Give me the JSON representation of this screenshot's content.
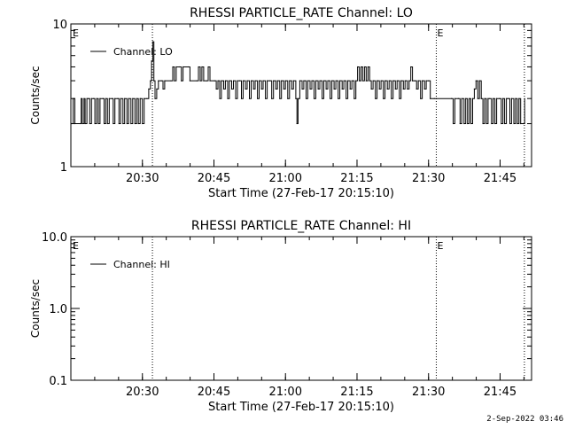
{
  "footer": {
    "timestamp": "2-Sep-2022 03:46"
  },
  "chart_data": [
    {
      "type": "line",
      "title": "RHESSI PARTICLE_RATE Channel: LO",
      "xlabel": "Start Time (27-Feb-17 20:15:10)",
      "ylabel": "Counts/sec",
      "scale": "log",
      "ylim": [
        1,
        10
      ],
      "ytick_labels": [
        "1",
        "10"
      ],
      "xlim_minutes": [
        20.25,
        21.86
      ],
      "xtick_labels": [
        "20:30",
        "20:45",
        "21:00",
        "21:15",
        "21:30",
        "21:45"
      ],
      "xtick_minutes": [
        20.5,
        20.75,
        21.0,
        21.25,
        21.5,
        21.75
      ],
      "legend": {
        "label": "Channel: LO",
        "placement": "top-left"
      },
      "event_markers": [
        {
          "label": "E",
          "minute": 20.253
        },
        {
          "label": "E",
          "minute": 21.527
        }
      ],
      "vlines_minutes": [
        20.535,
        21.527,
        21.835
      ],
      "series": [
        {
          "name": "Channel: LO",
          "values": [
            [
              20.252,
              2.0
            ],
            [
              20.258,
              3.0
            ],
            [
              20.264,
              2.0
            ],
            [
              20.282,
              2.0
            ],
            [
              20.286,
              3.0
            ],
            [
              20.29,
              2.0
            ],
            [
              20.296,
              3.0
            ],
            [
              20.3,
              2.0
            ],
            [
              20.306,
              3.0
            ],
            [
              20.312,
              3.0
            ],
            [
              20.316,
              2.0
            ],
            [
              20.322,
              3.0
            ],
            [
              20.33,
              3.0
            ],
            [
              20.334,
              2.0
            ],
            [
              20.34,
              3.0
            ],
            [
              20.346,
              2.0
            ],
            [
              20.352,
              3.0
            ],
            [
              20.362,
              3.0
            ],
            [
              20.366,
              2.0
            ],
            [
              20.372,
              3.0
            ],
            [
              20.378,
              2.0
            ],
            [
              20.384,
              3.0
            ],
            [
              20.394,
              3.0
            ],
            [
              20.398,
              2.0
            ],
            [
              20.404,
              3.0
            ],
            [
              20.414,
              3.0
            ],
            [
              20.418,
              2.0
            ],
            [
              20.424,
              3.0
            ],
            [
              20.432,
              2.0
            ],
            [
              20.438,
              3.0
            ],
            [
              20.446,
              2.0
            ],
            [
              20.452,
              3.0
            ],
            [
              20.46,
              2.0
            ],
            [
              20.466,
              3.0
            ],
            [
              20.474,
              2.0
            ],
            [
              20.48,
              3.0
            ],
            [
              20.486,
              2.0
            ],
            [
              20.492,
              3.0
            ],
            [
              20.5,
              2.0
            ],
            [
              20.506,
              3.0
            ],
            [
              20.516,
              3.0
            ],
            [
              20.522,
              3.5
            ],
            [
              20.528,
              4.0
            ],
            [
              20.532,
              5.5
            ],
            [
              20.536,
              7.5
            ],
            [
              20.54,
              4.0
            ],
            [
              20.544,
              3.0
            ],
            [
              20.55,
              3.5
            ],
            [
              20.556,
              4.0
            ],
            [
              20.566,
              4.0
            ],
            [
              20.572,
              3.5
            ],
            [
              20.578,
              4.0
            ],
            [
              20.6,
              4.0
            ],
            [
              20.606,
              5.0
            ],
            [
              20.612,
              4.0
            ],
            [
              20.618,
              5.0
            ],
            [
              20.63,
              5.0
            ],
            [
              20.636,
              4.0
            ],
            [
              20.642,
              5.0
            ],
            [
              20.66,
              5.0
            ],
            [
              20.666,
              4.0
            ],
            [
              20.69,
              4.0
            ],
            [
              20.696,
              5.0
            ],
            [
              20.702,
              4.0
            ],
            [
              20.708,
              5.0
            ],
            [
              20.714,
              4.0
            ],
            [
              20.724,
              4.0
            ],
            [
              20.73,
              5.0
            ],
            [
              20.736,
              4.0
            ],
            [
              20.752,
              4.0
            ],
            [
              20.758,
              3.5
            ],
            [
              20.764,
              4.0
            ],
            [
              20.77,
              3.0
            ],
            [
              20.776,
              4.0
            ],
            [
              20.784,
              3.5
            ],
            [
              20.79,
              4.0
            ],
            [
              20.798,
              3.0
            ],
            [
              20.804,
              4.0
            ],
            [
              20.812,
              3.5
            ],
            [
              20.818,
              4.0
            ],
            [
              20.826,
              3.0
            ],
            [
              20.832,
              4.0
            ],
            [
              20.84,
              4.0
            ],
            [
              20.846,
              3.0
            ],
            [
              20.852,
              4.0
            ],
            [
              20.86,
              3.5
            ],
            [
              20.866,
              4.0
            ],
            [
              20.874,
              3.0
            ],
            [
              20.88,
              4.0
            ],
            [
              20.888,
              3.5
            ],
            [
              20.894,
              4.0
            ],
            [
              20.902,
              3.0
            ],
            [
              20.908,
              4.0
            ],
            [
              20.916,
              3.5
            ],
            [
              20.922,
              4.0
            ],
            [
              20.93,
              3.0
            ],
            [
              20.936,
              4.0
            ],
            [
              20.946,
              4.0
            ],
            [
              20.952,
              3.0
            ],
            [
              20.958,
              4.0
            ],
            [
              20.966,
              3.5
            ],
            [
              20.972,
              4.0
            ],
            [
              20.98,
              3.0
            ],
            [
              20.986,
              4.0
            ],
            [
              20.994,
              3.5
            ],
            [
              21.0,
              4.0
            ],
            [
              21.008,
              3.0
            ],
            [
              21.014,
              4.0
            ],
            [
              21.022,
              3.5
            ],
            [
              21.028,
              4.0
            ],
            [
              21.036,
              3.0
            ],
            [
              21.04,
              2.0
            ],
            [
              21.044,
              3.0
            ],
            [
              21.05,
              4.0
            ],
            [
              21.058,
              3.5
            ],
            [
              21.064,
              4.0
            ],
            [
              21.072,
              3.0
            ],
            [
              21.078,
              4.0
            ],
            [
              21.086,
              3.5
            ],
            [
              21.092,
              4.0
            ],
            [
              21.1,
              3.0
            ],
            [
              21.106,
              4.0
            ],
            [
              21.114,
              3.5
            ],
            [
              21.12,
              4.0
            ],
            [
              21.128,
              3.0
            ],
            [
              21.134,
              4.0
            ],
            [
              21.142,
              3.5
            ],
            [
              21.148,
              4.0
            ],
            [
              21.156,
              3.0
            ],
            [
              21.162,
              4.0
            ],
            [
              21.17,
              3.5
            ],
            [
              21.176,
              4.0
            ],
            [
              21.184,
              3.0
            ],
            [
              21.19,
              4.0
            ],
            [
              21.198,
              3.5
            ],
            [
              21.204,
              4.0
            ],
            [
              21.212,
              3.0
            ],
            [
              21.218,
              4.0
            ],
            [
              21.226,
              3.5
            ],
            [
              21.232,
              4.0
            ],
            [
              21.24,
              3.0
            ],
            [
              21.246,
              4.0
            ],
            [
              21.252,
              5.0
            ],
            [
              21.258,
              4.0
            ],
            [
              21.264,
              5.0
            ],
            [
              21.27,
              4.0
            ],
            [
              21.276,
              5.0
            ],
            [
              21.282,
              4.0
            ],
            [
              21.288,
              5.0
            ],
            [
              21.294,
              4.0
            ],
            [
              21.3,
              3.5
            ],
            [
              21.306,
              4.0
            ],
            [
              21.314,
              3.0
            ],
            [
              21.32,
              4.0
            ],
            [
              21.328,
              3.5
            ],
            [
              21.334,
              4.0
            ],
            [
              21.342,
              3.0
            ],
            [
              21.348,
              4.0
            ],
            [
              21.356,
              3.5
            ],
            [
              21.362,
              4.0
            ],
            [
              21.37,
              3.0
            ],
            [
              21.376,
              4.0
            ],
            [
              21.384,
              3.5
            ],
            [
              21.39,
              4.0
            ],
            [
              21.398,
              3.0
            ],
            [
              21.404,
              4.0
            ],
            [
              21.412,
              3.5
            ],
            [
              21.418,
              4.0
            ],
            [
              21.426,
              3.5
            ],
            [
              21.432,
              4.0
            ],
            [
              21.438,
              5.0
            ],
            [
              21.444,
              4.0
            ],
            [
              21.452,
              4.0
            ],
            [
              21.458,
              3.5
            ],
            [
              21.464,
              4.0
            ],
            [
              21.472,
              3.0
            ],
            [
              21.478,
              4.0
            ],
            [
              21.486,
              3.5
            ],
            [
              21.492,
              4.0
            ],
            [
              21.5,
              4.0
            ],
            [
              21.506,
              3.0
            ],
            [
              21.52,
              3.0
            ],
            [
              21.527,
              3.0
            ],
            [
              21.58,
              3.0
            ],
            [
              21.586,
              2.0
            ],
            [
              21.592,
              3.0
            ],
            [
              21.604,
              3.0
            ],
            [
              21.61,
              2.0
            ],
            [
              21.616,
              3.0
            ],
            [
              21.624,
              2.0
            ],
            [
              21.63,
              3.0
            ],
            [
              21.636,
              2.0
            ],
            [
              21.642,
              3.0
            ],
            [
              21.648,
              2.0
            ],
            [
              21.654,
              3.0
            ],
            [
              21.66,
              3.5
            ],
            [
              21.666,
              4.0
            ],
            [
              21.672,
              3.0
            ],
            [
              21.678,
              4.0
            ],
            [
              21.684,
              3.0
            ],
            [
              21.69,
              2.0
            ],
            [
              21.696,
              3.0
            ],
            [
              21.702,
              2.0
            ],
            [
              21.708,
              3.0
            ],
            [
              21.714,
              3.0
            ],
            [
              21.72,
              2.0
            ],
            [
              21.726,
              3.0
            ],
            [
              21.732,
              2.0
            ],
            [
              21.738,
              3.0
            ],
            [
              21.748,
              3.0
            ],
            [
              21.754,
              2.0
            ],
            [
              21.76,
              3.0
            ],
            [
              21.766,
              2.0
            ],
            [
              21.772,
              3.0
            ],
            [
              21.778,
              3.0
            ],
            [
              21.784,
              2.0
            ],
            [
              21.79,
              3.0
            ],
            [
              21.798,
              2.0
            ],
            [
              21.804,
              3.0
            ],
            [
              21.81,
              2.0
            ],
            [
              21.816,
              3.0
            ],
            [
              21.822,
              2.0
            ],
            [
              21.83,
              2.0
            ],
            [
              21.836,
              3.0
            ]
          ]
        }
      ]
    },
    {
      "type": "line",
      "title": "RHESSI PARTICLE_RATE Channel: HI",
      "xlabel": "Start Time (27-Feb-17 20:15:10)",
      "ylabel": "Counts/sec",
      "scale": "log",
      "ylim": [
        0.1,
        10
      ],
      "ytick_labels": [
        "0.1",
        "1.0",
        "10.0"
      ],
      "xlim_minutes": [
        20.25,
        21.86
      ],
      "xtick_labels": [
        "20:30",
        "20:45",
        "21:00",
        "21:15",
        "21:30",
        "21:45"
      ],
      "xtick_minutes": [
        20.5,
        20.75,
        21.0,
        21.25,
        21.5,
        21.75
      ],
      "legend": {
        "label": "Channel: HI",
        "placement": "top-left"
      },
      "event_markers": [
        {
          "label": "E",
          "minute": 20.253
        },
        {
          "label": "E",
          "minute": 21.527
        }
      ],
      "vlines_minutes": [
        20.535,
        21.527,
        21.835
      ],
      "series": [
        {
          "name": "Channel: HI",
          "values": []
        }
      ]
    }
  ]
}
